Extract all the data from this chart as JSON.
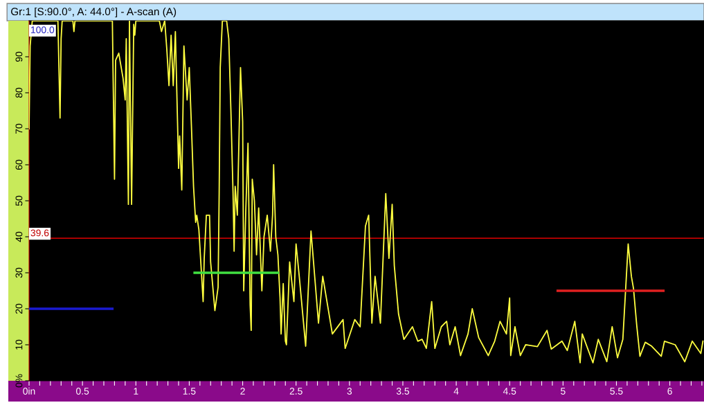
{
  "chart_data": {
    "type": "line",
    "title": "Gr:1 [S:90.0°, A: 44.0°] - A-scan (A)",
    "xlim": [
      0,
      6.32
    ],
    "ylim": [
      0,
      100
    ],
    "xticks": [
      {
        "value": 0,
        "label": "0in"
      },
      {
        "value": 0.1,
        "label": null
      },
      {
        "value": 0.2,
        "label": null
      },
      {
        "value": 0.3,
        "label": null
      },
      {
        "value": 0.4,
        "label": null
      },
      {
        "value": 0.5,
        "label": "0.5"
      },
      {
        "value": 0.6,
        "label": null
      },
      {
        "value": 0.7,
        "label": null
      },
      {
        "value": 0.8,
        "label": null
      },
      {
        "value": 0.9,
        "label": null
      },
      1,
      {
        "value": 1.1,
        "label": null
      },
      {
        "value": 1.2,
        "label": null
      },
      {
        "value": 1.3,
        "label": null
      },
      {
        "value": 1.4,
        "label": null
      },
      1.5,
      {
        "value": 1.6,
        "label": null
      },
      {
        "value": 1.7,
        "label": null
      },
      {
        "value": 1.8,
        "label": null
      },
      {
        "value": 1.9,
        "label": null
      },
      2,
      {
        "value": 2.1,
        "label": null
      },
      {
        "value": 2.2,
        "label": null
      },
      {
        "value": 2.3,
        "label": null
      },
      {
        "value": 2.4,
        "label": null
      },
      2.5,
      {
        "value": 2.6,
        "label": null
      },
      {
        "value": 2.7,
        "label": null
      },
      {
        "value": 2.8,
        "label": null
      },
      {
        "value": 2.9,
        "label": null
      },
      3,
      {
        "value": 3.1,
        "label": null
      },
      {
        "value": 3.2,
        "label": null
      },
      {
        "value": 3.3,
        "label": null
      },
      {
        "value": 3.4,
        "label": null
      },
      3.5,
      {
        "value": 3.6,
        "label": null
      },
      {
        "value": 3.7,
        "label": null
      },
      {
        "value": 3.8,
        "label": null
      },
      {
        "value": 3.9,
        "label": null
      },
      4,
      {
        "value": 4.1,
        "label": null
      },
      {
        "value": 4.2,
        "label": null
      },
      {
        "value": 4.3,
        "label": null
      },
      {
        "value": 4.4,
        "label": null
      },
      4.5,
      {
        "value": 4.6,
        "label": null
      },
      {
        "value": 4.7,
        "label": null
      },
      {
        "value": 4.8,
        "label": null
      },
      {
        "value": 4.9,
        "label": null
      },
      5,
      {
        "value": 5.1,
        "label": null
      },
      {
        "value": 5.2,
        "label": null
      },
      {
        "value": 5.3,
        "label": null
      },
      {
        "value": 5.4,
        "label": null
      },
      5.5,
      {
        "value": 5.6,
        "label": null
      },
      {
        "value": 5.7,
        "label": null
      },
      {
        "value": 5.8,
        "label": null
      },
      {
        "value": 5.9,
        "label": null
      },
      6,
      {
        "value": 6.1,
        "label": null
      },
      {
        "value": 6.2,
        "label": null
      },
      {
        "value": 6.3,
        "label": null
      }
    ],
    "yticks": [
      {
        "value": 0,
        "label": "0%"
      },
      10,
      20,
      30,
      40,
      50,
      60,
      70,
      80,
      90
    ],
    "grid": false,
    "legend": false,
    "marker": "none",
    "line_style": "solid",
    "ref_lines": [
      {
        "axis": "y",
        "value": 39.6,
        "label": "39.6",
        "color": "#c00000"
      }
    ],
    "annotations": [
      "100.0"
    ],
    "series": [
      {
        "color": "#ffff40",
        "x": [
          0,
          0.01,
          0.03,
          0.27,
          0.29,
          0.3,
          0.31,
          0.41,
          0.42,
          0.43,
          0.78,
          0.79,
          0.8,
          0.81,
          0.84,
          0.88,
          0.9,
          0.91,
          0.93,
          0.94,
          0.96,
          0.98,
          0.99,
          1.0,
          1.22,
          1.24,
          1.27,
          1.29,
          1.31,
          1.33,
          1.35,
          1.37,
          1.39,
          1.4,
          1.41,
          1.43,
          1.45,
          1.46,
          1.48,
          1.5,
          1.52,
          1.54,
          1.56,
          1.57,
          1.59,
          1.63,
          1.64,
          1.66,
          1.69,
          1.7,
          1.74,
          1.77,
          1.78,
          1.79,
          1.81,
          1.85,
          1.87,
          1.89,
          1.91,
          1.92,
          1.93,
          1.95,
          1.98,
          2.0,
          2.01,
          2.03,
          2.05,
          2.07,
          2.08,
          2.09,
          2.11,
          2.13,
          2.15,
          2.18,
          2.2,
          2.23,
          2.26,
          2.28,
          2.29,
          2.31,
          2.33,
          2.35,
          2.36,
          2.38,
          2.4,
          2.41,
          2.44,
          2.48,
          2.5,
          2.53,
          2.59,
          2.64,
          2.71,
          2.75,
          2.84,
          2.94,
          2.96,
          3.05,
          3.1,
          3.15,
          3.18,
          3.21,
          3.24,
          3.29,
          3.34,
          3.37,
          3.4,
          3.42,
          3.46,
          3.51,
          3.59,
          3.64,
          3.68,
          3.72,
          3.77,
          3.8,
          3.86,
          3.91,
          3.94,
          3.99,
          4.04,
          4.11,
          4.15,
          4.21,
          4.3,
          4.36,
          4.41,
          4.47,
          4.5,
          4.51,
          4.55,
          4.6,
          4.65,
          4.76,
          4.85,
          4.89,
          4.99,
          5.04,
          5.11,
          5.16,
          5.18,
          5.28,
          5.33,
          5.41,
          5.46,
          5.51,
          5.56,
          5.61,
          5.64,
          5.66,
          5.69,
          5.72,
          5.77,
          5.83,
          5.92,
          5.95,
          6.05,
          6.14,
          6.21,
          6.29,
          6.31
        ],
        "values": [
          70,
          93,
          100,
          100,
          73,
          95,
          100,
          100,
          97,
          100,
          100,
          78,
          56,
          89,
          91,
          84,
          78,
          95,
          49,
          100,
          49,
          99,
          96,
          100,
          100,
          97,
          100,
          92,
          82,
          96,
          82,
          97,
          72,
          59,
          68,
          53,
          93,
          88,
          78,
          87,
          71,
          54,
          44,
          46,
          42,
          22,
          34,
          46,
          46,
          33,
          19.5,
          26,
          52,
          87,
          100,
          100,
          95,
          75,
          52,
          36,
          54,
          46,
          87,
          72,
          25,
          48,
          66,
          21,
          14,
          56,
          50,
          35,
          48,
          25,
          40,
          46,
          36,
          46,
          60,
          40,
          35,
          23,
          13,
          27,
          11,
          10,
          33,
          22,
          38,
          29,
          9.6,
          41.6,
          16,
          29,
          13,
          17,
          9,
          17,
          15,
          43,
          46,
          16,
          29,
          16,
          52,
          34,
          49,
          32,
          18.5,
          11.5,
          15,
          11,
          11.5,
          9,
          22,
          9,
          15,
          16.5,
          10,
          15,
          7,
          13,
          20,
          12,
          7,
          11,
          16.5,
          13,
          23,
          7,
          15,
          7,
          10,
          9.5,
          14,
          8.8,
          11,
          8.4,
          16.5,
          5,
          13,
          5,
          11.5,
          5.3,
          15,
          6.4,
          11.5,
          38,
          29,
          25.6,
          15.4,
          6.8,
          10.7,
          9.6,
          6.8,
          11,
          10,
          5.3,
          11,
          7.6,
          11
        ]
      },
      {
        "color": "#1a1ad0",
        "x": [
          0,
          0.78
        ],
        "values": [
          20,
          20
        ]
      },
      {
        "color": "#40e040",
        "x": [
          1.55,
          2.33
        ],
        "values": [
          30,
          30
        ]
      },
      {
        "color": "#e02020",
        "x": [
          4.95,
          5.94
        ],
        "values": [
          25,
          25
        ]
      }
    ]
  }
}
